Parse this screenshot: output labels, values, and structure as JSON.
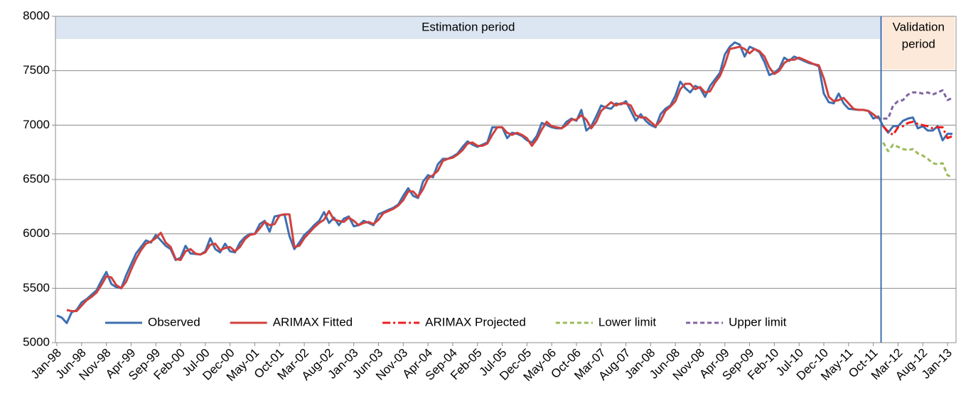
{
  "chart_data": {
    "type": "line",
    "estimation_label": "Estimation period",
    "validation_label": [
      "Validation",
      "period"
    ],
    "ylim": [
      5000,
      8000
    ],
    "yticks": [
      5000,
      5500,
      6000,
      6500,
      7000,
      7500,
      8000
    ],
    "grid": true,
    "legend": "bottom",
    "categories": [
      "Jan-98",
      null,
      null,
      null,
      null,
      "Jun-98",
      null,
      null,
      null,
      null,
      "Nov-98",
      null,
      null,
      null,
      null,
      "Apr-99",
      null,
      null,
      null,
      null,
      "Sep-99",
      null,
      null,
      null,
      null,
      "Feb-00",
      null,
      null,
      null,
      null,
      "Jul-00",
      null,
      null,
      null,
      null,
      "Dec-00",
      null,
      null,
      null,
      null,
      "May-01",
      null,
      null,
      null,
      null,
      "Oct-01",
      null,
      null,
      null,
      null,
      "Mar-02",
      null,
      null,
      null,
      null,
      "Aug-02",
      null,
      null,
      null,
      null,
      "Jan-03",
      null,
      null,
      null,
      null,
      "Jun-03",
      null,
      null,
      null,
      null,
      "Nov-03",
      null,
      null,
      null,
      null,
      "Apr-04",
      null,
      null,
      null,
      null,
      "Sep-04",
      null,
      null,
      null,
      null,
      "Feb-05",
      null,
      null,
      null,
      null,
      "Jul-05",
      null,
      null,
      null,
      null,
      "Dec-05",
      null,
      null,
      null,
      null,
      "May-06",
      null,
      null,
      null,
      null,
      "Oct-06",
      null,
      null,
      null,
      null,
      "Mar-07",
      null,
      null,
      null,
      null,
      "Aug-07",
      null,
      null,
      null,
      null,
      "Jan-08",
      null,
      null,
      null,
      null,
      "Jun-08",
      null,
      null,
      null,
      null,
      "Nov-08",
      null,
      null,
      null,
      null,
      "Apr-09",
      null,
      null,
      null,
      null,
      "Sep-09",
      null,
      null,
      null,
      null,
      "Feb-10",
      null,
      null,
      null,
      null,
      "Jul-10",
      null,
      null,
      null,
      null,
      "Dec-10",
      null,
      null,
      null,
      null,
      "May-11",
      null,
      null,
      null,
      null,
      "Oct-11",
      null,
      null,
      null,
      null,
      "Mar-12",
      null,
      null,
      null,
      null,
      "Aug-12",
      null,
      null,
      null,
      null,
      "Jan-13",
      null
    ],
    "series": [
      {
        "name": "Observed",
        "color": "#3e6fb0",
        "dash": "solid",
        "values": [
          5250,
          5230,
          5180,
          5280,
          5300,
          5370,
          5400,
          5440,
          5480,
          5570,
          5650,
          5540,
          5510,
          5500,
          5620,
          5720,
          5820,
          5880,
          5940,
          5920,
          5990,
          5940,
          5890,
          5860,
          5760,
          5780,
          5890,
          5820,
          5815,
          5810,
          5840,
          5960,
          5860,
          5830,
          5910,
          5840,
          5830,
          5920,
          5970,
          6000,
          6000,
          6090,
          6120,
          6020,
          6160,
          6170,
          6180,
          5980,
          5860,
          5920,
          5990,
          6030,
          6080,
          6120,
          6200,
          6100,
          6150,
          6080,
          6140,
          6160,
          6070,
          6080,
          6120,
          6100,
          6080,
          6180,
          6200,
          6220,
          6240,
          6270,
          6350,
          6420,
          6350,
          6330,
          6480,
          6540,
          6520,
          6640,
          6690,
          6690,
          6710,
          6740,
          6800,
          6850,
          6820,
          6800,
          6820,
          6840,
          6980,
          6980,
          6980,
          6880,
          6930,
          6920,
          6900,
          6860,
          6840,
          6900,
          7020,
          7000,
          6980,
          6970,
          6970,
          7030,
          7060,
          7040,
          7140,
          6950,
          6990,
          7080,
          7180,
          7160,
          7150,
          7200,
          7190,
          7220,
          7130,
          7040,
          7100,
          7040,
          7000,
          6980,
          7100,
          7150,
          7180,
          7270,
          7400,
          7340,
          7300,
          7360,
          7340,
          7260,
          7360,
          7420,
          7480,
          7650,
          7720,
          7760,
          7740,
          7630,
          7720,
          7700,
          7670,
          7580,
          7460,
          7480,
          7520,
          7620,
          7590,
          7630,
          7610,
          7590,
          7570,
          7560,
          7540,
          7290,
          7210,
          7200,
          7290,
          7200,
          7150,
          7145,
          7140,
          7140,
          7130,
          7060,
          7080,
          6990,
          6930,
          6990,
          6990,
          7040,
          7060,
          7070,
          6970,
          6990,
          6950,
          6950,
          6990,
          6860,
          6920,
          6920
        ]
      },
      {
        "name": "ARIMAX Fitted",
        "color": "#d0413e",
        "dash": "solid",
        "values": [
          null,
          null,
          5300,
          5290,
          5290,
          5340,
          5390,
          5420,
          5460,
          5530,
          5610,
          5600,
          5530,
          5500,
          5560,
          5670,
          5770,
          5850,
          5910,
          5930,
          5960,
          6010,
          5920,
          5880,
          5770,
          5760,
          5840,
          5860,
          5820,
          5810,
          5830,
          5900,
          5910,
          5850,
          5870,
          5880,
          5840,
          5880,
          5950,
          5990,
          6000,
          6050,
          6110,
          6080,
          6090,
          6170,
          6180,
          6180,
          5880,
          5890,
          5960,
          6010,
          6060,
          6100,
          6130,
          6210,
          6130,
          6120,
          6110,
          6150,
          6120,
          6080,
          6100,
          6110,
          6090,
          6130,
          6190,
          6210,
          6230,
          6260,
          6310,
          6390,
          6390,
          6340,
          6410,
          6510,
          6540,
          6580,
          6670,
          6690,
          6700,
          6730,
          6770,
          6830,
          6840,
          6810,
          6810,
          6830,
          6910,
          6980,
          6980,
          6930,
          6910,
          6930,
          6910,
          6880,
          6810,
          6870,
          6960,
          7030,
          6990,
          6980,
          6970,
          7000,
          7050,
          7050,
          7090,
          7050,
          6970,
          7030,
          7130,
          7170,
          7210,
          7180,
          7200,
          7200,
          7180,
          7090,
          7070,
          7070,
          7030,
          6990,
          7040,
          7130,
          7170,
          7220,
          7330,
          7380,
          7380,
          7330,
          7350,
          7300,
          7310,
          7390,
          7450,
          7560,
          7700,
          7710,
          7720,
          7700,
          7660,
          7700,
          7680,
          7630,
          7530,
          7470,
          7500,
          7570,
          7600,
          7600,
          7620,
          7600,
          7580,
          7560,
          7550,
          7430,
          7260,
          7220,
          7230,
          7250,
          7200,
          7150,
          7140,
          7140,
          7130,
          7100,
          7060,
          null,
          null,
          null,
          null,
          null,
          null,
          null,
          null,
          null,
          null,
          null,
          null,
          null,
          null,
          null
        ]
      },
      {
        "name": "ARIMAX Projected",
        "color": "#ee1c1c",
        "dash": "dashdot",
        "values": [
          null,
          null,
          null,
          null,
          null,
          null,
          null,
          null,
          null,
          null,
          null,
          null,
          null,
          null,
          null,
          null,
          null,
          null,
          null,
          null,
          null,
          null,
          null,
          null,
          null,
          null,
          null,
          null,
          null,
          null,
          null,
          null,
          null,
          null,
          null,
          null,
          null,
          null,
          null,
          null,
          null,
          null,
          null,
          null,
          null,
          null,
          null,
          null,
          null,
          null,
          null,
          null,
          null,
          null,
          null,
          null,
          null,
          null,
          null,
          null,
          null,
          null,
          null,
          null,
          null,
          null,
          null,
          null,
          null,
          null,
          null,
          null,
          null,
          null,
          null,
          null,
          null,
          null,
          null,
          null,
          null,
          null,
          null,
          null,
          null,
          null,
          null,
          null,
          null,
          null,
          null,
          null,
          null,
          null,
          null,
          null,
          null,
          null,
          null,
          null,
          null,
          null,
          null,
          null,
          null,
          null,
          null,
          null,
          null,
          null,
          null,
          null,
          null,
          null,
          null,
          null,
          null,
          null,
          null,
          null,
          null,
          null,
          null,
          null,
          null,
          null,
          null,
          null,
          null,
          null,
          null,
          null,
          null,
          null,
          null,
          null,
          null,
          null,
          null,
          null,
          null,
          null,
          null,
          null,
          null,
          null,
          null,
          null,
          null,
          null,
          null,
          null,
          null,
          null,
          null,
          null,
          null,
          null,
          null,
          null,
          null,
          null,
          null,
          null,
          null,
          null,
          null,
          6990,
          6940,
          6910,
          6980,
          6990,
          7020,
          7030,
          7010,
          7000,
          6990,
          6970,
          6980,
          6980,
          6880,
          6900
        ]
      },
      {
        "name": "Lower limit",
        "color": "#9bbb59",
        "dash": "dash",
        "values": [
          null,
          null,
          null,
          null,
          null,
          null,
          null,
          null,
          null,
          null,
          null,
          null,
          null,
          null,
          null,
          null,
          null,
          null,
          null,
          null,
          null,
          null,
          null,
          null,
          null,
          null,
          null,
          null,
          null,
          null,
          null,
          null,
          null,
          null,
          null,
          null,
          null,
          null,
          null,
          null,
          null,
          null,
          null,
          null,
          null,
          null,
          null,
          null,
          null,
          null,
          null,
          null,
          null,
          null,
          null,
          null,
          null,
          null,
          null,
          null,
          null,
          null,
          null,
          null,
          null,
          null,
          null,
          null,
          null,
          null,
          null,
          null,
          null,
          null,
          null,
          null,
          null,
          null,
          null,
          null,
          null,
          null,
          null,
          null,
          null,
          null,
          null,
          null,
          null,
          null,
          null,
          null,
          null,
          null,
          null,
          null,
          null,
          null,
          null,
          null,
          null,
          null,
          null,
          null,
          null,
          null,
          null,
          null,
          null,
          null,
          null,
          null,
          null,
          null,
          null,
          null,
          null,
          null,
          null,
          null,
          null,
          null,
          null,
          null,
          null,
          null,
          null,
          null,
          null,
          null,
          null,
          null,
          null,
          null,
          null,
          null,
          null,
          null,
          null,
          null,
          null,
          null,
          null,
          null,
          null,
          null,
          null,
          null,
          null,
          null,
          null,
          null,
          null,
          null,
          null,
          null,
          null,
          null,
          null,
          null,
          null,
          null,
          null,
          null,
          null,
          null,
          null,
          6840,
          6760,
          6820,
          6800,
          6780,
          6770,
          6780,
          6740,
          6720,
          6690,
          6650,
          6640,
          6650,
          6540,
          6520
        ]
      },
      {
        "name": "Upper limit",
        "color": "#8064a2",
        "dash": "dash",
        "values": [
          null,
          null,
          null,
          null,
          null,
          null,
          null,
          null,
          null,
          null,
          null,
          null,
          null,
          null,
          null,
          null,
          null,
          null,
          null,
          null,
          null,
          null,
          null,
          null,
          null,
          null,
          null,
          null,
          null,
          null,
          null,
          null,
          null,
          null,
          null,
          null,
          null,
          null,
          null,
          null,
          null,
          null,
          null,
          null,
          null,
          null,
          null,
          null,
          null,
          null,
          null,
          null,
          null,
          null,
          null,
          null,
          null,
          null,
          null,
          null,
          null,
          null,
          null,
          null,
          null,
          null,
          null,
          null,
          null,
          null,
          null,
          null,
          null,
          null,
          null,
          null,
          null,
          null,
          null,
          null,
          null,
          null,
          null,
          null,
          null,
          null,
          null,
          null,
          null,
          null,
          null,
          null,
          null,
          null,
          null,
          null,
          null,
          null,
          null,
          null,
          null,
          null,
          null,
          null,
          null,
          null,
          null,
          null,
          null,
          null,
          null,
          null,
          null,
          null,
          null,
          null,
          null,
          null,
          null,
          null,
          null,
          null,
          null,
          null,
          null,
          null,
          null,
          null,
          null,
          null,
          null,
          null,
          null,
          null,
          null,
          null,
          null,
          null,
          null,
          null,
          null,
          null,
          null,
          null,
          null,
          null,
          null,
          null,
          null,
          null,
          null,
          null,
          null,
          null,
          null,
          null,
          null,
          null,
          null,
          null,
          null,
          null,
          null,
          null,
          null,
          null,
          null,
          7060,
          7060,
          7180,
          7220,
          7230,
          7280,
          7300,
          7300,
          7290,
          7300,
          7280,
          7300,
          7320,
          7230,
          7250
        ]
      }
    ]
  }
}
